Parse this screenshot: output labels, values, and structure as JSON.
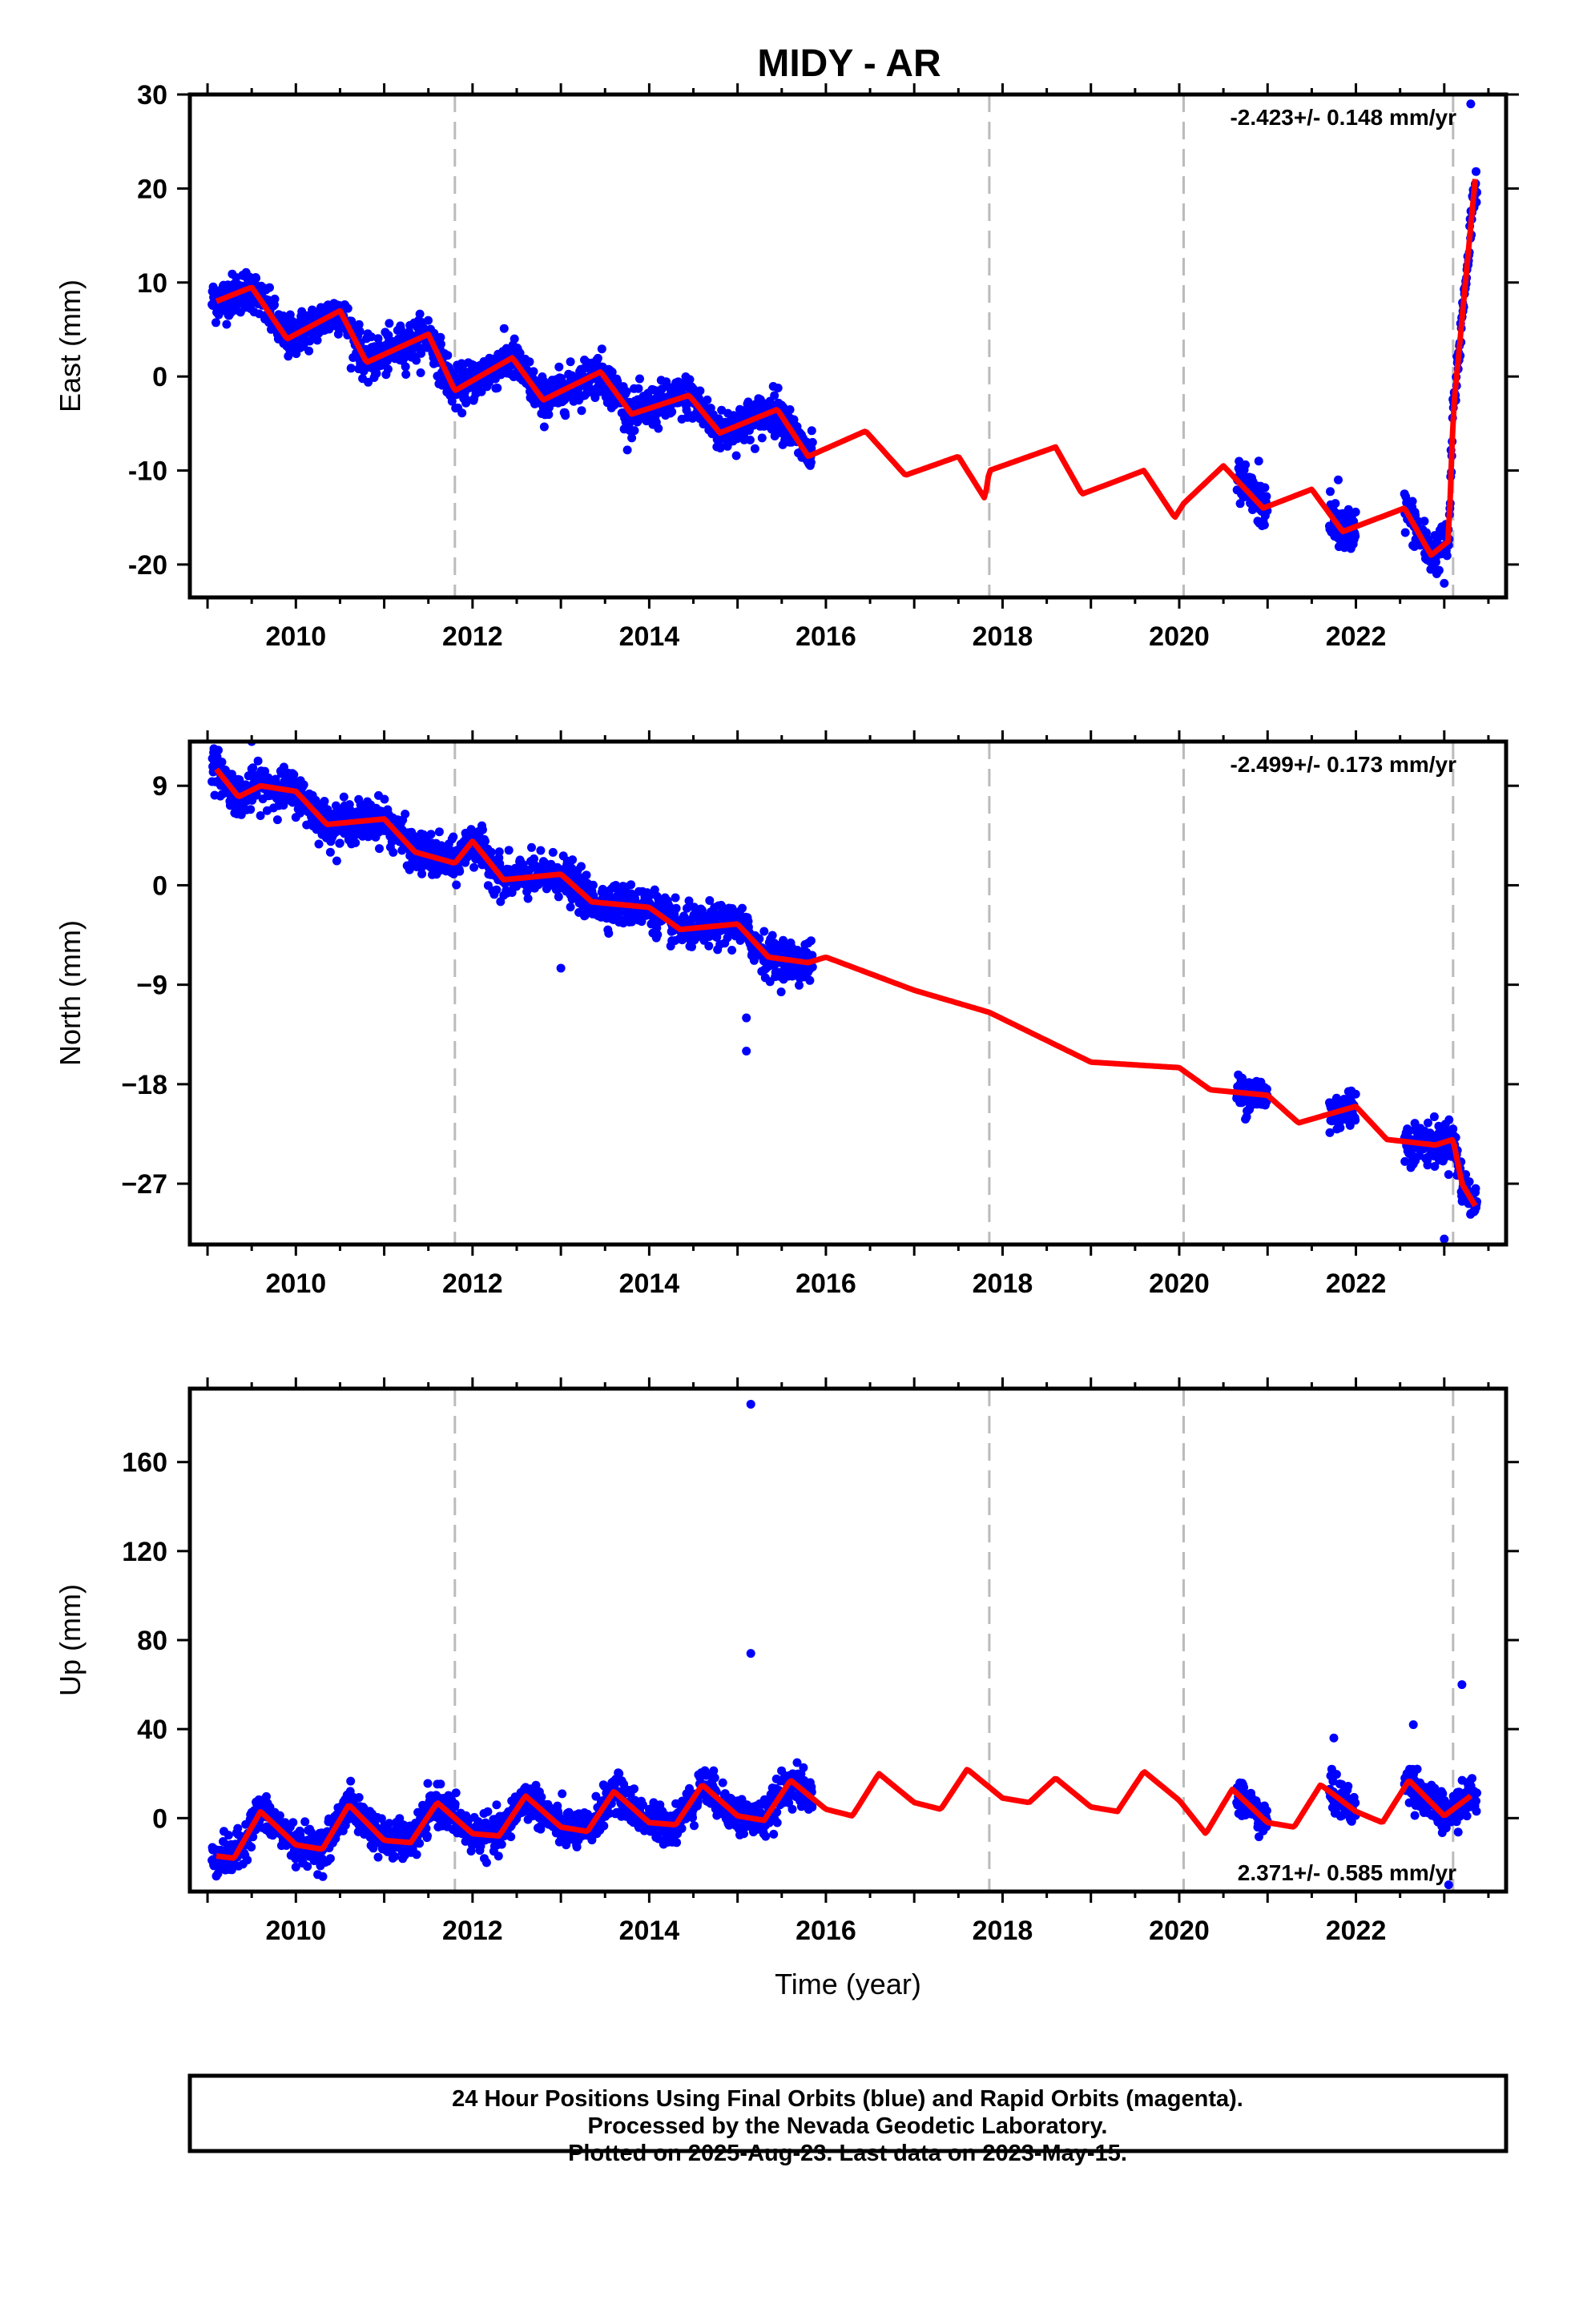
{
  "title": "MIDY - AR",
  "footer": {
    "line1": "24 Hour Positions Using Final Orbits (blue) and Rapid Orbits (magenta).",
    "line2": "Processed by the Nevada Geodetic Laboratory.",
    "line3": "Plotted on 2025-Aug-23. Last data on 2023-May-15."
  },
  "colors": {
    "data_points": "#0000ff",
    "model_line": "#ff0000",
    "offset_lines": "#bbbbbb",
    "frame": "#000000"
  },
  "chart_data": [
    {
      "type": "scatter",
      "id": "east",
      "ylabel": "East (mm)",
      "xlabel": "",
      "xlim": [
        2008.8,
        2023.7
      ],
      "ylim": [
        -23.5,
        30
      ],
      "yticks": [
        -20,
        -10,
        0,
        10,
        20,
        30
      ],
      "xticks": [
        2010,
        2012,
        2014,
        2016,
        2018,
        2020,
        2022
      ],
      "grid": false,
      "rate_label": "-2.423+/- 0.148 mm/yr",
      "rate_label_position": "top-right",
      "offset_epochs": [
        2011.8,
        2017.85,
        2020.05,
        2023.1
      ],
      "data_segments": [
        [
          2009.05,
          2015.85
        ],
        [
          2020.65,
          2021.0
        ],
        [
          2021.7,
          2022.0
        ],
        [
          2022.55,
          2023.37
        ]
      ],
      "model_samples": {
        "x": [
          2009.1,
          2009.5,
          2009.9,
          2010.5,
          2010.8,
          2011.5,
          2011.75,
          2011.8,
          2012.45,
          2012.8,
          2013.45,
          2013.8,
          2014.45,
          2014.8,
          2015.45,
          2015.8,
          2016.45,
          2016.9,
          2017.5,
          2017.8,
          2017.85,
          2018.6,
          2018.9,
          2019.6,
          2019.95,
          2020.05,
          2020.5,
          2020.95,
          2021.5,
          2021.85,
          2022.55,
          2022.85,
          2023.05,
          2023.1,
          2023.35
        ],
        "y": [
          8,
          9.5,
          4,
          7,
          1.5,
          4.5,
          -0.5,
          -1.5,
          2,
          -2.5,
          0.5,
          -4,
          -2,
          -6,
          -3.5,
          -8.5,
          -5.8,
          -10.5,
          -8.5,
          -13,
          -10,
          -7.5,
          -12.5,
          -10,
          -15,
          -13.5,
          -9.5,
          -14,
          -12,
          -16.5,
          -14,
          -19,
          -17.5,
          -4,
          21
        ]
      },
      "outliers": [
        {
          "x": 2023.3,
          "y": 29
        },
        {
          "x": 2023.0,
          "y": -22
        },
        {
          "x": 2020.9,
          "y": -9
        },
        {
          "x": 2021.8,
          "y": -11
        }
      ]
    },
    {
      "type": "scatter",
      "id": "north",
      "ylabel": "North (mm)",
      "xlabel": "",
      "xlim": [
        2008.8,
        2023.7
      ],
      "ylim": [
        -32.5,
        13
      ],
      "yticks": [
        -27,
        -18,
        -9,
        0,
        9
      ],
      "yticklabels": [
        "−27",
        "−18",
        "−9",
        "0",
        "9"
      ],
      "xticks": [
        2010,
        2012,
        2014,
        2016,
        2018,
        2020,
        2022
      ],
      "grid": false,
      "rate_label": "-2.499+/- 0.173 mm/yr",
      "rate_label_position": "top-right",
      "offset_epochs": [
        2011.8,
        2017.85,
        2020.05,
        2023.1
      ],
      "data_segments": [
        [
          2009.05,
          2015.85
        ],
        [
          2020.65,
          2021.0
        ],
        [
          2021.7,
          2022.0
        ],
        [
          2022.55,
          2023.37
        ]
      ],
      "model_samples": {
        "x": [
          2009.1,
          2009.35,
          2009.6,
          2010.0,
          2010.35,
          2011.0,
          2011.35,
          2011.8,
          2012.0,
          2012.35,
          2013.0,
          2013.35,
          2014.0,
          2014.35,
          2015.0,
          2015.35,
          2015.8,
          2016.0,
          2017.0,
          2017.85,
          2019.0,
          2020.0,
          2020.35,
          2021.0,
          2021.35,
          2022.0,
          2022.35,
          2022.9,
          2023.1,
          2023.2,
          2023.35
        ],
        "y": [
          10.5,
          8,
          9,
          8.5,
          5.5,
          6,
          3,
          2,
          4,
          0.5,
          1,
          -1.5,
          -2,
          -4,
          -3.5,
          -6.5,
          -7,
          -6.5,
          -9.5,
          -11.5,
          -16,
          -16.5,
          -18.5,
          -19,
          -21.5,
          -20,
          -23,
          -23.5,
          -23,
          -27,
          -29
        ]
      },
      "outliers": [
        {
          "x": 2015.1,
          "y": -12
        },
        {
          "x": 2015.1,
          "y": -15
        },
        {
          "x": 2009.5,
          "y": 13
        },
        {
          "x": 2013.0,
          "y": -7.5
        },
        {
          "x": 2023.0,
          "y": -32
        }
      ]
    },
    {
      "type": "scatter",
      "id": "up",
      "ylabel": "Up (mm)",
      "xlabel": "Time (year)",
      "xlim": [
        2008.8,
        2023.7
      ],
      "ylim": [
        -33,
        193
      ],
      "yticks": [
        0,
        40,
        80,
        120,
        160
      ],
      "xticks": [
        2010,
        2012,
        2014,
        2016,
        2018,
        2020,
        2022
      ],
      "grid": false,
      "rate_label": "2.371+/- 0.585 mm/yr",
      "rate_label_position": "bottom-right",
      "offset_epochs": [
        2011.8,
        2017.85,
        2020.05,
        2023.1
      ],
      "data_segments": [
        [
          2009.05,
          2015.85
        ],
        [
          2020.65,
          2021.0
        ],
        [
          2021.7,
          2022.0
        ],
        [
          2022.55,
          2023.37
        ]
      ],
      "model_samples": {
        "x": [
          2009.1,
          2009.3,
          2009.6,
          2010.0,
          2010.3,
          2010.6,
          2011.0,
          2011.3,
          2011.6,
          2012.0,
          2012.3,
          2012.6,
          2013.0,
          2013.3,
          2013.6,
          2014.0,
          2014.3,
          2014.6,
          2015.0,
          2015.3,
          2015.6,
          2016.0,
          2016.3,
          2016.6,
          2017.0,
          2017.3,
          2017.6,
          2018.0,
          2018.3,
          2018.6,
          2019.0,
          2019.3,
          2019.6,
          2020.0,
          2020.3,
          2020.6,
          2021.0,
          2021.3,
          2021.6,
          2022.0,
          2022.3,
          2022.6,
          2023.0,
          2023.3
        ],
        "y": [
          -17,
          -18,
          3,
          -12,
          -14,
          6,
          -10,
          -11,
          7,
          -7,
          -8,
          10,
          -4,
          -6,
          12,
          -2,
          -3,
          15,
          1,
          -1,
          17,
          4,
          1,
          20,
          7,
          4,
          22,
          9,
          7,
          18,
          5,
          3,
          21,
          8,
          -7,
          13,
          -2,
          -4,
          15,
          3,
          -2,
          17,
          1,
          10
        ]
      },
      "outliers": [
        {
          "x": 2015.15,
          "y": 186
        },
        {
          "x": 2015.15,
          "y": 74
        },
        {
          "x": 2023.2,
          "y": 60
        },
        {
          "x": 2022.65,
          "y": 42
        },
        {
          "x": 2021.75,
          "y": 36
        },
        {
          "x": 2023.05,
          "y": -30
        }
      ]
    }
  ]
}
